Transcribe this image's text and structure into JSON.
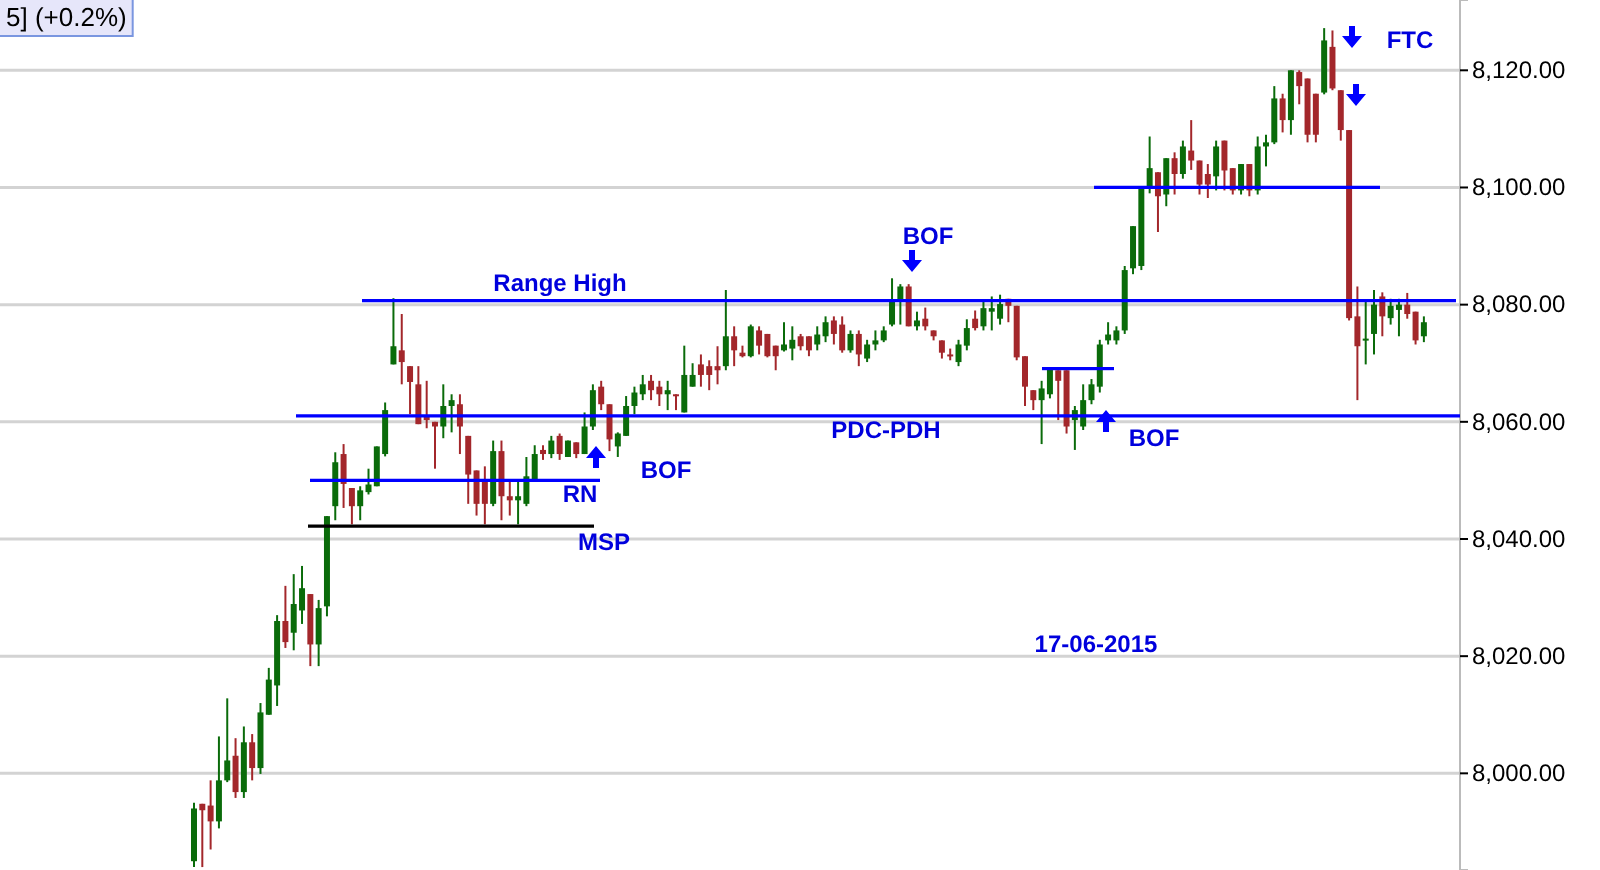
{
  "chart_data": {
    "type": "candlestick",
    "categories": [
      null,
      null,
      null,
      null,
      null,
      null,
      null,
      null,
      null,
      null,
      null,
      null,
      null,
      null,
      null,
      null,
      null,
      null,
      null,
      null,
      null,
      null,
      null,
      null,
      null,
      null,
      null,
      null,
      null,
      null,
      null,
      null,
      null,
      null,
      null,
      null,
      null,
      null,
      null,
      null,
      null,
      null,
      null,
      null,
      null,
      null,
      null,
      null,
      null,
      null,
      null,
      null,
      null,
      null,
      null,
      null,
      null,
      null,
      null,
      null,
      null,
      null,
      null,
      null,
      null,
      null,
      null,
      null,
      null,
      null,
      null,
      null,
      null,
      null,
      null,
      null,
      null,
      null,
      null,
      null,
      null,
      null,
      null,
      null,
      null,
      null,
      null,
      null,
      null,
      null,
      null,
      null,
      null,
      null,
      null,
      null,
      null,
      null,
      null,
      null,
      null,
      null,
      null,
      null,
      null,
      null,
      null,
      null,
      null,
      null,
      null,
      null,
      null,
      null,
      null,
      null,
      null,
      null,
      null,
      null,
      null,
      null,
      null,
      null,
      null,
      null,
      null,
      null,
      null,
      null,
      null,
      null,
      null,
      null,
      null,
      null,
      null,
      null,
      null,
      null,
      null,
      null,
      null,
      null,
      null,
      null,
      null,
      null,
      null
    ],
    "ohlc": [
      [
        7985,
        7995,
        7984,
        7994
      ],
      [
        7994.8,
        7994.8,
        7984,
        7993.7
      ],
      [
        7994.5,
        7998.8,
        7987,
        7991.8
      ],
      [
        7991.8,
        8006.3,
        7990.6,
        7998.8
      ],
      [
        7998.8,
        8012.8,
        7998.5,
        8002.2
      ],
      [
        8003,
        8006,
        7995.8,
        7996.8
      ],
      [
        7996.8,
        8008,
        7995.8,
        8005.3
      ],
      [
        8005.3,
        8006.7,
        7998.8,
        8000.9
      ],
      [
        8000.9,
        8012,
        7999.9,
        8010.4
      ],
      [
        8010,
        8018,
        8010,
        8016
      ],
      [
        8015,
        8027,
        8011.5,
        8026
      ],
      [
        8026,
        8032,
        8021.4,
        8022.4
      ],
      [
        8024,
        8034,
        8021,
        8028.9
      ],
      [
        8027.8,
        8035.4,
        8025.5,
        8031.6
      ],
      [
        8030.6,
        8030.6,
        8018.3,
        8022
      ],
      [
        8022,
        8029.6,
        8018.3,
        8028.2
      ],
      [
        8028.5,
        8043.9,
        8026.8,
        8043.9
      ],
      [
        8045.6,
        8054.8,
        8043.2,
        8053.1
      ],
      [
        8054.5,
        8056.2,
        8045.3,
        8049.4
      ],
      [
        8048.7,
        8048.7,
        8042.5,
        8045.6
      ],
      [
        8045.6,
        8049,
        8043.2,
        8048.3
      ],
      [
        8048,
        8052,
        8047.6,
        8049.3
      ],
      [
        8049,
        8055.8,
        8049,
        8055.8
      ],
      [
        8054.5,
        8063.3,
        8054.1,
        8062
      ],
      [
        8069.8,
        8081.1,
        8069.8,
        8072.9
      ],
      [
        8072.2,
        8078.4,
        8066.4,
        8070.2
      ],
      [
        8069.5,
        8069.5,
        8061.3,
        8066.8
      ],
      [
        8066.4,
        8069.5,
        8059.6,
        8059.6
      ],
      [
        8061,
        8067,
        8058.9,
        8060.3
      ],
      [
        8060,
        8060,
        8052,
        8059.2
      ],
      [
        8059.2,
        8066.4,
        8057.2,
        8062.7
      ],
      [
        8062.7,
        8064.7,
        8058.2,
        8063.7
      ],
      [
        8063,
        8064.7,
        8054.5,
        8059.2
      ],
      [
        8057.6,
        8057.6,
        8046,
        8051
      ],
      [
        8051.7,
        8051.7,
        8044,
        8046
      ],
      [
        8050,
        8052.4,
        8042.5,
        8046
      ],
      [
        8046,
        8056.8,
        8045.6,
        8055
      ],
      [
        8055,
        8056.8,
        8043.2,
        8047.3
      ],
      [
        8047.3,
        8050,
        8044,
        8046.6
      ],
      [
        8046.6,
        8050,
        8042.5,
        8047.3
      ],
      [
        8046,
        8054,
        8045.6,
        8050.7
      ],
      [
        8050,
        8056,
        8050,
        8054.5
      ],
      [
        8055.2,
        8056,
        8053.5,
        8054.5
      ],
      [
        8054.5,
        8057.6,
        8053.8,
        8056.8
      ],
      [
        8057.6,
        8058,
        8053.5,
        8054.5
      ],
      [
        8054,
        8056.8,
        8054,
        8056.8
      ],
      [
        8056.5,
        8056.5,
        8053.8,
        8054.5
      ],
      [
        8054.5,
        8061.6,
        8054.5,
        8059.2
      ],
      [
        8059.2,
        8066.4,
        8058.6,
        8065.4
      ],
      [
        8066,
        8067,
        8062,
        8063
      ],
      [
        8063,
        8063,
        8055,
        8057
      ],
      [
        8055.8,
        8058.2,
        8054,
        8058
      ],
      [
        8057.6,
        8064.4,
        8057.6,
        8062.7
      ],
      [
        8062.7,
        8066,
        8061.3,
        8065
      ],
      [
        8064.7,
        8068,
        8063.7,
        8066.4
      ],
      [
        8067,
        8068,
        8063.7,
        8065.4
      ],
      [
        8066,
        8067,
        8062.7,
        8064.7
      ],
      [
        8064.7,
        8067,
        8062,
        8065.4
      ],
      [
        8064.7,
        8064.7,
        8062,
        8064.4
      ],
      [
        8061.6,
        8073,
        8061.6,
        8068
      ],
      [
        8066,
        8070,
        8066,
        8068
      ],
      [
        8069.8,
        8071.5,
        8066,
        8068
      ],
      [
        8069.5,
        8070.5,
        8065.4,
        8068
      ],
      [
        8069.5,
        8072.9,
        8066.4,
        8068.8
      ],
      [
        8069.5,
        8082.5,
        8068.8,
        8074.6
      ],
      [
        8074.6,
        8076.3,
        8069.5,
        8072.2
      ],
      [
        8071.8,
        8073,
        8071,
        8071.2
      ],
      [
        8071.2,
        8076.6,
        8071,
        8076.3
      ],
      [
        8075.6,
        8076.3,
        8071.5,
        8073
      ],
      [
        8075,
        8075,
        8071,
        8071.2
      ],
      [
        8073,
        8073,
        8068.8,
        8071.2
      ],
      [
        8072.2,
        8077,
        8072,
        8073.2
      ],
      [
        8072.5,
        8076.3,
        8070.5,
        8074
      ],
      [
        8074.6,
        8075,
        8072.2,
        8072.9
      ],
      [
        8074.6,
        8074.6,
        8071.2,
        8072.2
      ],
      [
        8073.2,
        8076.3,
        8072.2,
        8074.9
      ],
      [
        8074.6,
        8078,
        8073.6,
        8077
      ],
      [
        8077.3,
        8078,
        8073.2,
        8075
      ],
      [
        8076.6,
        8078,
        8071.8,
        8072.2
      ],
      [
        8072.2,
        8075.6,
        8071.8,
        8075
      ],
      [
        8075,
        8075.6,
        8069.5,
        8071.5
      ],
      [
        8070.8,
        8074,
        8070.2,
        8073.2
      ],
      [
        8073.2,
        8075.6,
        8072.2,
        8073.9
      ],
      [
        8073.9,
        8076.3,
        8073.6,
        8075.6
      ],
      [
        8076.6,
        8084.5,
        8076.3,
        8080.7
      ],
      [
        8080.7,
        8083.5,
        8076.6,
        8083.1
      ],
      [
        8083.1,
        8083.5,
        8076.3,
        8076.3
      ],
      [
        8076.3,
        8078.8,
        8075.6,
        8077.3
      ],
      [
        8077.6,
        8079.5,
        8075.6,
        8076.3
      ],
      [
        8075.6,
        8075.6,
        8073.9,
        8074.6
      ],
      [
        8073.9,
        8073.9,
        8070.8,
        8071.8
      ],
      [
        8071.5,
        8072.5,
        8070.5,
        8071.2
      ],
      [
        8070.2,
        8074,
        8069.5,
        8073.2
      ],
      [
        8073,
        8077.5,
        8072.2,
        8076
      ],
      [
        8077.6,
        8079,
        8075.6,
        8076
      ],
      [
        8076.3,
        8080.7,
        8075.6,
        8079.4
      ],
      [
        8078.8,
        8081.4,
        8075.6,
        8079.4
      ],
      [
        8077.6,
        8081.7,
        8076.6,
        8080.1
      ],
      [
        8081,
        8081,
        8077,
        8079.8
      ],
      [
        8079.8,
        8079.8,
        8070.5,
        8071
      ],
      [
        8071.2,
        8071.2,
        8062.7,
        8066
      ],
      [
        8065.4,
        8065.4,
        8062,
        8063.7
      ],
      [
        8063.7,
        8067,
        8056.2,
        8065.7
      ],
      [
        8064.7,
        8069.1,
        8064,
        8069.1
      ],
      [
        8068.8,
        8068.8,
        8060.3,
        8067
      ],
      [
        8068.8,
        8068.8,
        8058,
        8059.2
      ],
      [
        8060.3,
        8062.7,
        8055.2,
        8062
      ],
      [
        8059.2,
        8066.4,
        8058.6,
        8063.7
      ],
      [
        8063.7,
        8067.3,
        8063,
        8066.4
      ],
      [
        8066,
        8074,
        8065,
        8073.2
      ],
      [
        8073.9,
        8077,
        8073.2,
        8074.9
      ],
      [
        8073.9,
        8076.3,
        8073.2,
        8075.6
      ],
      [
        8075.6,
        8086.6,
        8075,
        8085.9
      ],
      [
        8086.2,
        8093.4,
        8085.2,
        8093.4
      ],
      [
        8086.6,
        8100.2,
        8085.9,
        8100.2
      ],
      [
        8100,
        8108.7,
        8099,
        8103.3
      ],
      [
        8102.6,
        8102.6,
        8092.4,
        8098.5
      ],
      [
        8098.8,
        8105,
        8096.8,
        8105
      ],
      [
        8105,
        8106,
        8098.8,
        8102.3
      ],
      [
        8102.3,
        8108,
        8101.5,
        8107
      ],
      [
        8106.3,
        8111.5,
        8103,
        8104.6
      ],
      [
        8104.6,
        8104.6,
        8098.8,
        8100.5
      ],
      [
        8102.3,
        8104,
        8098.2,
        8100.5
      ],
      [
        8101.9,
        8108,
        8099.5,
        8107
      ],
      [
        8108,
        8108,
        8099.5,
        8102.9
      ],
      [
        8103.3,
        8103.3,
        8098.8,
        8099.5
      ],
      [
        8099.5,
        8104,
        8098.8,
        8104
      ],
      [
        8104,
        8104,
        8098.5,
        8099.5
      ],
      [
        8099.5,
        8108.7,
        8098.8,
        8107
      ],
      [
        8107,
        8109,
        8103.6,
        8107.7
      ],
      [
        8107.7,
        8117.3,
        8107.4,
        8115.2
      ],
      [
        8115.2,
        8116,
        8109.4,
        8111.5
      ],
      [
        8111.5,
        8120,
        8109,
        8120
      ],
      [
        8119.7,
        8120,
        8114.2,
        8117.3
      ],
      [
        8118.6,
        8118.6,
        8107.7,
        8109
      ],
      [
        8116,
        8116,
        8107.7,
        8109
      ],
      [
        8116.2,
        8127.2,
        8115.9,
        8125.1
      ],
      [
        8124,
        8126.8,
        8116.6,
        8116.9
      ],
      [
        8116.6,
        8116.6,
        8108,
        8109.8
      ],
      [
        8109.8,
        8109.8,
        8077.3,
        8077.7
      ],
      [
        8078,
        8083.1,
        8063.7,
        8072.9
      ],
      [
        8073.9,
        8080.7,
        8069.8,
        8074.2
      ],
      [
        8075,
        8082.5,
        8071.5,
        8080
      ],
      [
        8081.4,
        8082.1,
        8074.6,
        8078
      ],
      [
        8077.7,
        8081,
        8076.6,
        8079.8
      ],
      [
        8079.1,
        8081,
        8074.6,
        8080
      ],
      [
        8080,
        8082,
        8077.6,
        8078.4
      ],
      [
        8078.8,
        8078.8,
        8073.2,
        8073.9
      ],
      [
        8074.6,
        8078,
        8073.6,
        8077
      ]
    ],
    "ylim": [
      7983.5,
      8132
    ],
    "yticks": [
      {
        "value": 8000,
        "label": "8,000.00"
      },
      {
        "value": 8020,
        "label": "8,020.00"
      },
      {
        "value": 8040,
        "label": "8,040.00"
      },
      {
        "value": 8060,
        "label": "8,060.00"
      },
      {
        "value": 8080,
        "label": "8,080.00"
      },
      {
        "value": 8100,
        "label": "8,100.00"
      },
      {
        "value": 8120,
        "label": "8,120.00"
      }
    ],
    "tick_labels": "y",
    "grid": "y",
    "ref_lines": [
      {
        "axis": "y",
        "value": 8080.7,
        "label": "Range High",
        "color": "#0000ff"
      },
      {
        "axis": "y",
        "value": 8050,
        "label": "RN",
        "color": "#0000ff"
      },
      {
        "axis": "y",
        "value": 8042.2,
        "label": "MSP",
        "color": "#000000"
      },
      {
        "axis": "y",
        "value": 8100,
        "color": "#0000ff"
      },
      {
        "axis": "y",
        "value": 8061,
        "label": "PDC-PDH",
        "color": "#0000ff"
      }
    ],
    "annotations": [
      "5] (+0.2%)",
      "BOF",
      "BOF",
      "BOF",
      "FTC",
      "17-06-2015"
    ]
  }
}
